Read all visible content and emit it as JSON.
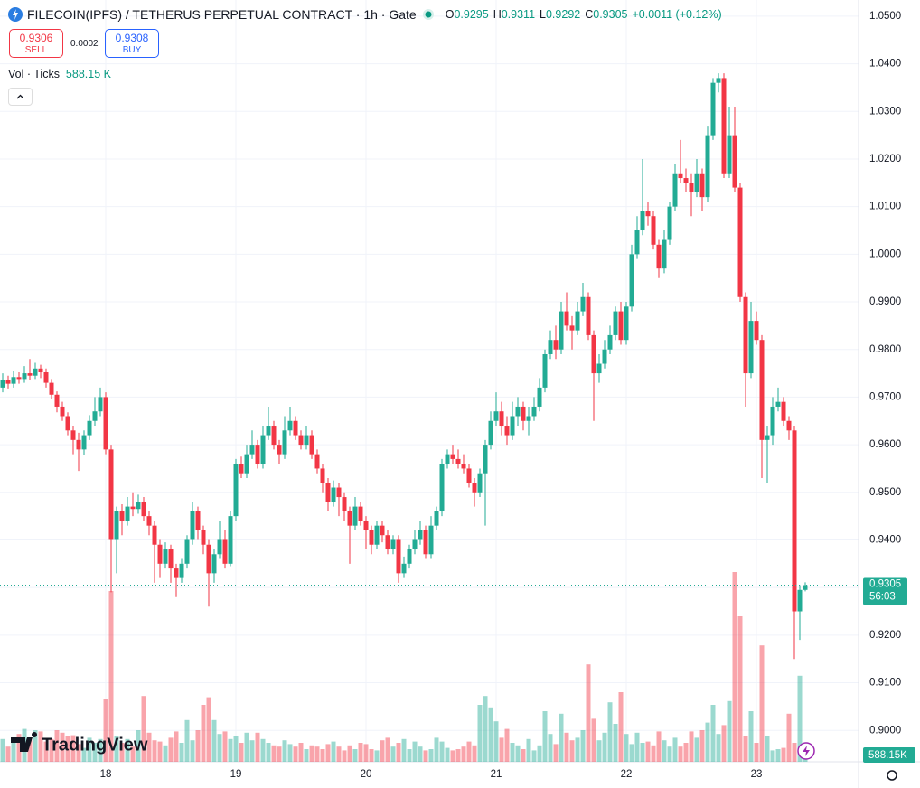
{
  "chart_data": {
    "type": "candlestick",
    "title": "FILECOIN(IPFS) / TETHERUS PERPETUAL CONTRACT · 1h · Gate",
    "ohlc_legend": [
      {
        "label": "O",
        "value": 0.9295
      },
      {
        "label": "H",
        "value": 0.9311
      },
      {
        "label": "L",
        "value": 0.9292
      },
      {
        "label": "C",
        "value": 0.9305
      }
    ],
    "change": "+0.0011 (+0.12%)",
    "trade": {
      "sell_price": 0.9306,
      "sell_label": "SELL",
      "spread": 0.0002,
      "buy_price": 0.9308,
      "buy_label": "BUY"
    },
    "volume_title": "Vol · Ticks",
    "volume_legend_value": "588.15 K",
    "volume_axis_label": "588.15K",
    "last_price_label": "0.9305",
    "countdown": "56:03",
    "watermark": "TradingView",
    "up_color": "#22ab94",
    "down_color": "#f23645",
    "ylim": [
      0.8934,
      1.0534
    ],
    "yticks": [
      {
        "value": 0.9,
        "label": "0.9000"
      },
      {
        "value": 0.91,
        "label": "0.9100"
      },
      {
        "value": 0.92,
        "label": "0.9200"
      },
      {
        "value": 0.93,
        "label": "0.9300"
      },
      {
        "value": 0.94,
        "label": "0.9400"
      },
      {
        "value": 0.95,
        "label": "0.9500"
      },
      {
        "value": 0.96,
        "label": "0.9600"
      },
      {
        "value": 0.97,
        "label": "0.9700"
      },
      {
        "value": 0.98,
        "label": "0.9800"
      },
      {
        "value": 0.99,
        "label": "0.9900"
      },
      {
        "value": 1,
        "label": "1.0000"
      },
      {
        "value": 1.01,
        "label": "1.0100"
      },
      {
        "value": 1.02,
        "label": "1.0200"
      },
      {
        "value": 1.03,
        "label": "1.0300"
      },
      {
        "value": 1.04,
        "label": "1.0400"
      },
      {
        "value": 1.05,
        "label": "1.0500"
      }
    ],
    "xticks": [
      {
        "value": 19,
        "label": "18"
      },
      {
        "value": 43,
        "label": "19"
      },
      {
        "value": 67,
        "label": "20"
      },
      {
        "value": 91,
        "label": "21"
      },
      {
        "value": 115,
        "label": "22"
      },
      {
        "value": 139,
        "label": "23"
      }
    ],
    "last_price": 0.9305,
    "open": [
      0.972,
      0.9735,
      0.9728,
      0.9742,
      0.9738,
      0.975,
      0.9745,
      0.976,
      0.9752,
      0.973,
      0.9705,
      0.968,
      0.966,
      0.963,
      0.961,
      0.959,
      0.962,
      0.965,
      0.967,
      0.97,
      0.959,
      0.94,
      0.946,
      0.944,
      0.947,
      0.9465,
      0.948,
      0.945,
      0.943,
      0.939,
      0.935,
      0.938,
      0.934,
      0.932,
      0.935,
      0.94,
      0.946,
      0.942,
      0.939,
      0.933,
      0.937,
      0.94,
      0.935,
      0.945,
      0.956,
      0.954,
      0.958,
      0.96,
      0.956,
      0.962,
      0.964,
      0.96,
      0.958,
      0.963,
      0.965,
      0.962,
      0.96,
      0.962,
      0.958,
      0.955,
      0.952,
      0.948,
      0.951,
      0.949,
      0.946,
      0.943,
      0.947,
      0.944,
      0.942,
      0.939,
      0.943,
      0.941,
      0.938,
      0.94,
      0.933,
      0.935,
      0.938,
      0.94,
      0.942,
      0.937,
      0.943,
      0.946,
      0.956,
      0.958,
      0.957,
      0.956,
      0.955,
      0.952,
      0.95,
      0.954,
      0.96,
      0.965,
      0.967,
      0.964,
      0.962,
      0.966,
      0.968,
      0.965,
      0.966,
      0.968,
      0.972,
      0.979,
      0.982,
      0.98,
      0.988,
      0.985,
      0.984,
      0.988,
      0.991,
      0.983,
      0.975,
      0.977,
      0.98,
      0.983,
      0.988,
      0.982,
      0.989,
      1.0,
      1.005,
      1.009,
      1.008,
      1.002,
      0.997,
      1.003,
      1.01,
      1.017,
      1.016,
      1.015,
      1.013,
      1.017,
      1.012,
      1.025,
      1.036,
      1.037,
      1.017,
      1.025,
      1.014,
      0.991,
      0.975,
      0.986,
      0.982,
      0.961,
      0.962,
      0.968,
      0.969,
      0.965,
      0.963,
      0.925,
      0.9295
    ],
    "high": [
      0.975,
      0.9745,
      0.9755,
      0.9752,
      0.9765,
      0.978,
      0.9772,
      0.9768,
      0.976,
      0.9738,
      0.9712,
      0.969,
      0.9668,
      0.964,
      0.9625,
      0.963,
      0.9662,
      0.97,
      0.972,
      0.971,
      0.96,
      0.947,
      0.9475,
      0.949,
      0.95,
      0.9495,
      0.949,
      0.946,
      0.944,
      0.94,
      0.9395,
      0.939,
      0.935,
      0.936,
      0.941,
      0.948,
      0.947,
      0.943,
      0.94,
      0.938,
      0.944,
      0.942,
      0.946,
      0.957,
      0.9575,
      0.96,
      0.963,
      0.961,
      0.964,
      0.968,
      0.965,
      0.961,
      0.966,
      0.968,
      0.966,
      0.963,
      0.964,
      0.963,
      0.959,
      0.956,
      0.953,
      0.9525,
      0.952,
      0.95,
      0.947,
      0.949,
      0.948,
      0.945,
      0.943,
      0.944,
      0.944,
      0.942,
      0.941,
      0.941,
      0.9365,
      0.939,
      0.942,
      0.944,
      0.943,
      0.945,
      0.947,
      0.957,
      0.959,
      0.96,
      0.959,
      0.958,
      0.956,
      0.953,
      0.955,
      0.961,
      0.967,
      0.971,
      0.969,
      0.966,
      0.969,
      0.97,
      0.969,
      0.968,
      0.97,
      0.974,
      0.98,
      0.984,
      0.985,
      0.99,
      0.992,
      0.987,
      0.99,
      0.994,
      0.992,
      0.984,
      0.979,
      0.982,
      0.985,
      0.989,
      0.99,
      0.99,
      1.002,
      1.008,
      1.02,
      1.011,
      1.009,
      1.003,
      1.005,
      1.011,
      1.019,
      1.024,
      1.018,
      1.017,
      1.02,
      1.018,
      1.027,
      1.037,
      1.038,
      1.038,
      1.031,
      1.031,
      1.015,
      0.992,
      0.99,
      0.988,
      0.983,
      0.964,
      0.97,
      0.972,
      0.97,
      0.966,
      0.964,
      0.9305,
      0.9311
    ],
    "low": [
      0.971,
      0.9718,
      0.972,
      0.9728,
      0.973,
      0.9735,
      0.9738,
      0.974,
      0.972,
      0.9695,
      0.9668,
      0.965,
      0.962,
      0.958,
      0.9545,
      0.9578,
      0.961,
      0.964,
      0.966,
      0.958,
      0.929,
      0.933,
      0.941,
      0.943,
      0.945,
      0.9455,
      0.944,
      0.941,
      0.931,
      0.932,
      0.934,
      0.931,
      0.928,
      0.931,
      0.934,
      0.939,
      0.94,
      0.937,
      0.926,
      0.931,
      0.936,
      0.934,
      0.9345,
      0.944,
      0.953,
      0.953,
      0.957,
      0.955,
      0.955,
      0.961,
      0.959,
      0.956,
      0.957,
      0.962,
      0.961,
      0.959,
      0.959,
      0.957,
      0.954,
      0.95,
      0.946,
      0.947,
      0.945,
      0.944,
      0.935,
      0.942,
      0.943,
      0.938,
      0.937,
      0.938,
      0.9395,
      0.937,
      0.937,
      0.931,
      0.932,
      0.934,
      0.937,
      0.939,
      0.936,
      0.936,
      0.942,
      0.945,
      0.955,
      0.956,
      0.955,
      0.954,
      0.951,
      0.947,
      0.949,
      0.943,
      0.959,
      0.964,
      0.962,
      0.96,
      0.961,
      0.964,
      0.963,
      0.962,
      0.965,
      0.967,
      0.971,
      0.978,
      0.978,
      0.979,
      0.984,
      0.98,
      0.983,
      0.987,
      0.982,
      0.965,
      0.973,
      0.976,
      0.979,
      0.982,
      0.981,
      0.981,
      0.988,
      0.999,
      1.004,
      1.006,
      1.001,
      0.995,
      0.996,
      1.002,
      1.009,
      1.015,
      1.013,
      1.008,
      1.012,
      1.009,
      1.011,
      1.024,
      1.034,
      1.016,
      1.016,
      1.013,
      0.99,
      0.968,
      0.974,
      0.981,
      0.953,
      0.952,
      0.96,
      0.967,
      0.964,
      0.961,
      0.915,
      0.919,
      0.9292
    ],
    "close": [
      0.9735,
      0.9728,
      0.9742,
      0.9738,
      0.975,
      0.9745,
      0.976,
      0.9752,
      0.973,
      0.9705,
      0.968,
      0.966,
      0.963,
      0.961,
      0.959,
      0.962,
      0.965,
      0.967,
      0.97,
      0.959,
      0.94,
      0.946,
      0.944,
      0.947,
      0.9465,
      0.948,
      0.945,
      0.943,
      0.939,
      0.935,
      0.938,
      0.934,
      0.932,
      0.935,
      0.94,
      0.946,
      0.942,
      0.939,
      0.933,
      0.937,
      0.94,
      0.935,
      0.945,
      0.956,
      0.954,
      0.958,
      0.96,
      0.956,
      0.962,
      0.964,
      0.96,
      0.958,
      0.963,
      0.965,
      0.962,
      0.96,
      0.962,
      0.958,
      0.955,
      0.952,
      0.948,
      0.951,
      0.949,
      0.946,
      0.943,
      0.947,
      0.944,
      0.942,
      0.939,
      0.943,
      0.941,
      0.938,
      0.94,
      0.933,
      0.935,
      0.938,
      0.94,
      0.942,
      0.937,
      0.943,
      0.946,
      0.956,
      0.958,
      0.957,
      0.956,
      0.955,
      0.952,
      0.95,
      0.954,
      0.96,
      0.965,
      0.967,
      0.964,
      0.962,
      0.966,
      0.968,
      0.965,
      0.966,
      0.968,
      0.972,
      0.979,
      0.982,
      0.98,
      0.988,
      0.985,
      0.984,
      0.988,
      0.991,
      0.983,
      0.975,
      0.977,
      0.98,
      0.983,
      0.988,
      0.982,
      0.989,
      1.0,
      1.005,
      1.009,
      1.008,
      1.002,
      0.997,
      1.003,
      1.01,
      1.017,
      1.016,
      1.015,
      1.013,
      1.017,
      1.012,
      1.025,
      1.036,
      1.037,
      1.017,
      1.025,
      1.014,
      0.991,
      0.975,
      0.986,
      0.982,
      0.961,
      0.962,
      0.968,
      0.969,
      0.965,
      0.963,
      0.925,
      0.9295,
      0.9305
    ],
    "volume": [
      1800,
      1200,
      1500,
      2200,
      2600,
      1700,
      2500,
      2400,
      1600,
      1800,
      2500,
      2300,
      2000,
      2100,
      1400,
      1100,
      1900,
      1500,
      1800,
      5000,
      13500,
      2000,
      1500,
      1800,
      1200,
      2500,
      5200,
      2300,
      1700,
      1600,
      1300,
      1900,
      2400,
      1500,
      3300,
      1700,
      2500,
      4500,
      5100,
      3300,
      2200,
      2400,
      1800,
      2000,
      1500,
      2300,
      1700,
      2300,
      1800,
      1500,
      1300,
      1200,
      1700,
      1400,
      1200,
      1500,
      1000,
      1300,
      1200,
      1000,
      1400,
      1600,
      1200,
      900,
      1300,
      1000,
      1500,
      1400,
      1000,
      900,
      1700,
      1900,
      1200,
      1500,
      1800,
      1000,
      1600,
      1200,
      900,
      1000,
      1900,
      1600,
      1100,
      900,
      1000,
      1200,
      1600,
      1300,
      4500,
      5200,
      4300,
      3200,
      1900,
      2600,
      1500,
      1300,
      1000,
      1800,
      900,
      1300,
      4000,
      2200,
      1400,
      3800,
      2300,
      1700,
      1900,
      2500,
      7700,
      3400,
      1700,
      2300,
      4700,
      3000,
      5500,
      2200,
      1400,
      2300,
      1500,
      1600,
      1300,
      2400,
      1700,
      1200,
      1900,
      1200,
      1500,
      2400,
      1900,
      2500,
      3100,
      4500,
      2200,
      2900,
      4800,
      15000,
      11500,
      2000,
      4000,
      1500,
      9200,
      2000,
      900,
      1000,
      1100,
      3800,
      1500,
      6800,
      588.15
    ]
  }
}
